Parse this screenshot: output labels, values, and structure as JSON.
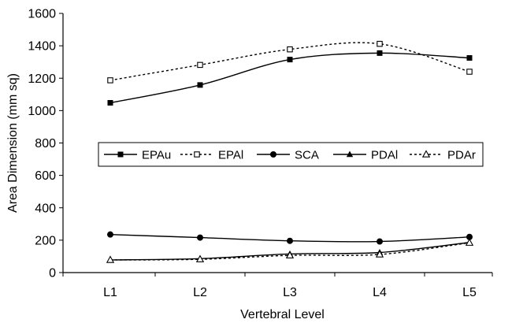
{
  "chart_data": {
    "type": "line",
    "title": "",
    "xlabel": "Vertebral Level",
    "ylabel": "Area Dimension (mm sq)",
    "categories": [
      "L1",
      "L2",
      "L3",
      "L4",
      "L5"
    ],
    "ylim": [
      0,
      1600
    ],
    "yticks": [
      "0",
      "200",
      "400",
      "600",
      "800",
      "1000",
      "1200",
      "1400",
      "1600"
    ],
    "grid": false,
    "legend_position": "center",
    "series": [
      {
        "name": "EPAu",
        "values": [
          1048,
          1158,
          1315,
          1355,
          1325
        ],
        "line": "solid",
        "marker": "square-filled",
        "smooth": true
      },
      {
        "name": "EPAl",
        "values": [
          1187,
          1282,
          1378,
          1412,
          1240
        ],
        "line": "dashed",
        "marker": "square-open",
        "smooth": true
      },
      {
        "name": "SCA",
        "values": [
          235,
          216,
          196,
          192,
          220
        ],
        "line": "solid",
        "marker": "circle-filled",
        "smooth": true
      },
      {
        "name": "PDAl",
        "values": [
          78,
          86,
          115,
          124,
          186
        ],
        "line": "solid",
        "marker": "triangle-filled",
        "smooth": true
      },
      {
        "name": "PDAr",
        "values": [
          78,
          82,
          106,
          112,
          184
        ],
        "line": "dashed",
        "marker": "triangle-open",
        "smooth": true
      }
    ]
  }
}
